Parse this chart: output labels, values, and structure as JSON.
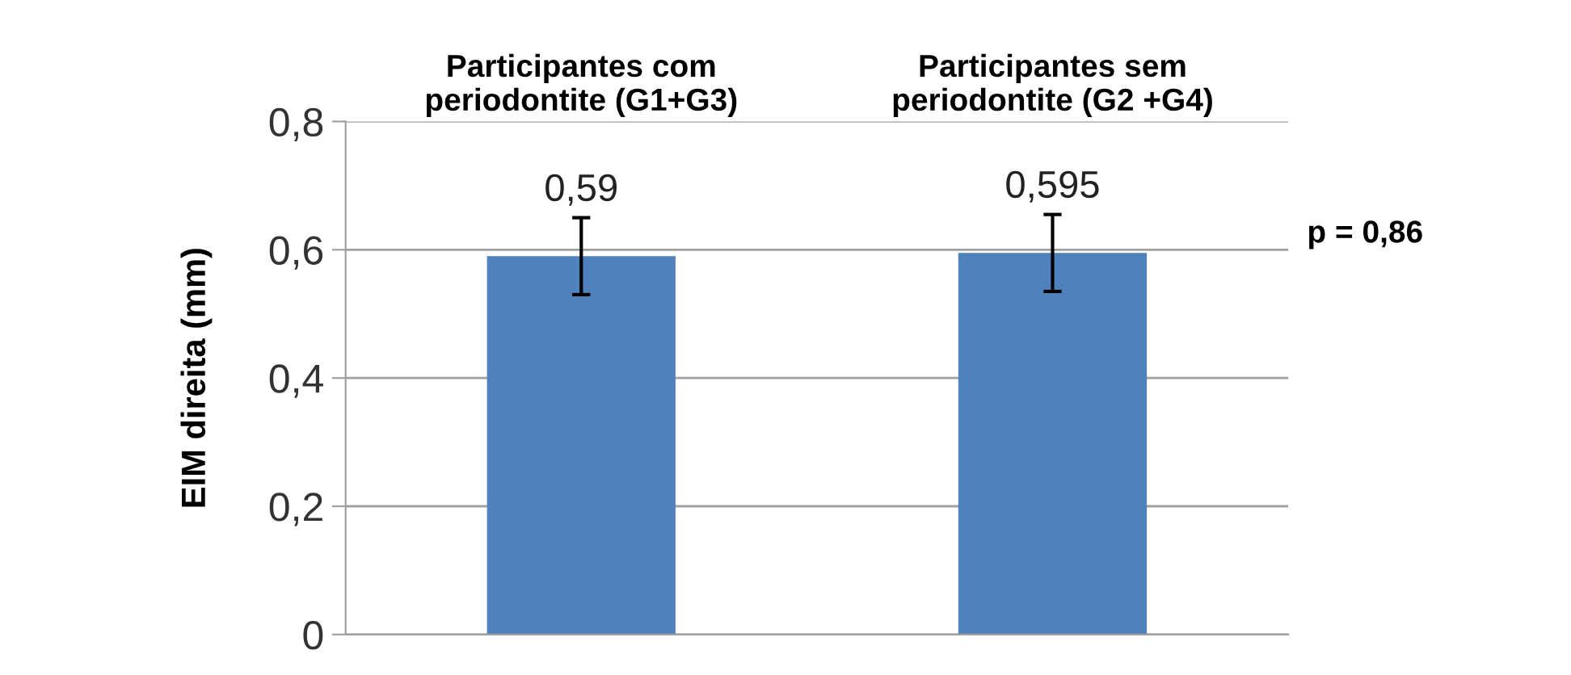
{
  "chart_data": {
    "type": "bar",
    "ylabel": "EIM direita (mm)",
    "categories": [
      "Participantes com\nperiodontite (G1+G3)",
      "Participantes sem\nperiodontite (G2 +G4)"
    ],
    "values": [
      0.59,
      0.595
    ],
    "errors": [
      0.06,
      0.06
    ],
    "color": "#4f81bd",
    "value_labels": [
      "0,59",
      "0,595"
    ],
    "ylim": [
      0,
      0.8
    ],
    "yticks": [
      {
        "value": 0,
        "label": "0"
      },
      {
        "value": 0.2,
        "label": "0,2"
      },
      {
        "value": 0.4,
        "label": "0,4"
      },
      {
        "value": 0.6,
        "label": "0,6"
      },
      {
        "value": 0.8,
        "label": "0,8"
      }
    ],
    "grid": "y",
    "annotations": [
      "p = 0,86"
    ]
  }
}
